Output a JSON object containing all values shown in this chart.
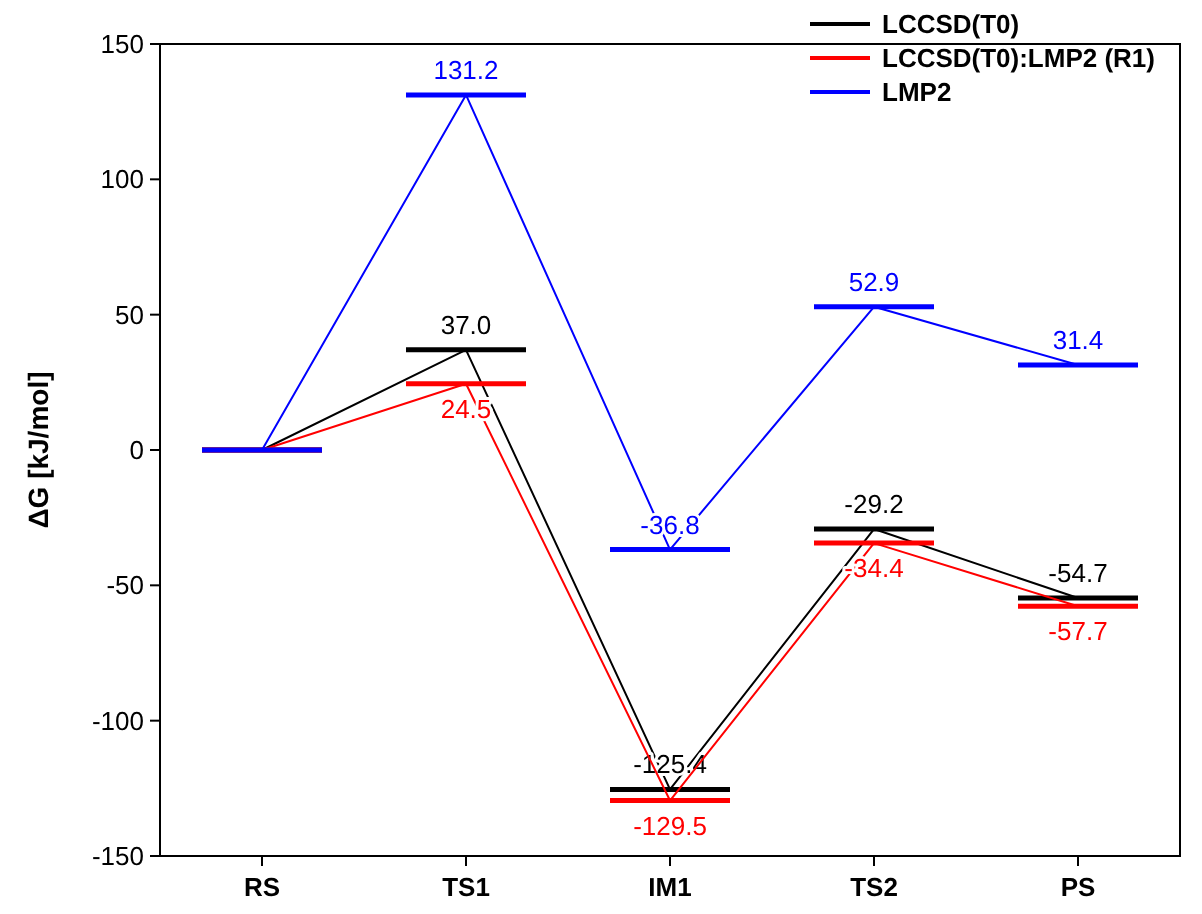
{
  "chart_data": {
    "type": "line",
    "ylabel": "ΔG [kJ/mol]",
    "categories": [
      "RS",
      "TS1",
      "IM1",
      "TS2",
      "PS"
    ],
    "ylim": [
      -150,
      150
    ],
    "yticks": [
      -150,
      -100,
      -50,
      0,
      50,
      100,
      150
    ],
    "legend": "top right",
    "series": [
      {
        "name": "LCCSD(T0)",
        "color": "#000000",
        "values": [
          0,
          37.0,
          -125.4,
          -29.2,
          -54.7
        ],
        "value_labels": [
          null,
          "37.0",
          "-125.4",
          "-29.2",
          "-54.7"
        ]
      },
      {
        "name": "LCCSD(T0):LMP2 (R1)",
        "color": "#ff0000",
        "values": [
          0,
          24.5,
          -129.5,
          -34.4,
          -57.7
        ],
        "value_labels": [
          null,
          "24.5",
          "-129.5",
          "-34.4",
          "-57.7"
        ]
      },
      {
        "name": "LMP2",
        "color": "#0000ff",
        "values": [
          0,
          131.2,
          -36.8,
          52.9,
          31.4
        ],
        "value_labels": [
          null,
          "131.2",
          "-36.8",
          "52.9",
          "31.4"
        ]
      }
    ]
  }
}
